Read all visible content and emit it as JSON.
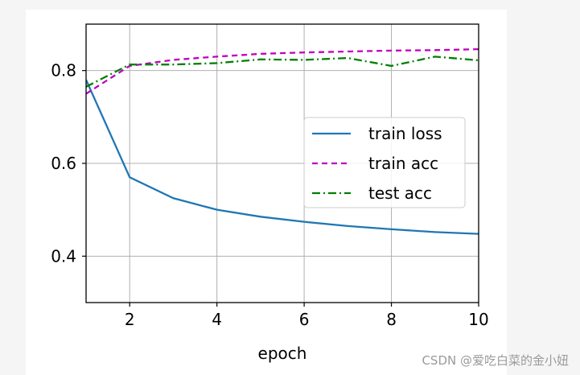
{
  "chart_data": {
    "type": "line",
    "xlabel": "epoch",
    "ylabel": "",
    "xlim": [
      1,
      10
    ],
    "ylim": [
      0.3,
      0.9
    ],
    "xticks": [
      2,
      4,
      6,
      8,
      10
    ],
    "yticks": [
      0.4,
      0.6,
      0.8
    ],
    "grid": true,
    "legend_position": "center-right",
    "series": [
      {
        "name": "train loss",
        "color": "#1f77b4",
        "dash": "solid",
        "x": [
          1,
          2,
          3,
          4,
          5,
          6,
          7,
          8,
          9,
          10
        ],
        "y": [
          0.78,
          0.57,
          0.525,
          0.5,
          0.485,
          0.474,
          0.465,
          0.458,
          0.452,
          0.448
        ]
      },
      {
        "name": "train acc",
        "color": "#bf00bf",
        "dash": "dashed",
        "x": [
          1,
          2,
          3,
          4,
          5,
          6,
          7,
          8,
          9,
          10
        ],
        "y": [
          0.75,
          0.81,
          0.823,
          0.83,
          0.836,
          0.839,
          0.841,
          0.843,
          0.844,
          0.846
        ]
      },
      {
        "name": "test acc",
        "color": "#008000",
        "dash": "dashdot",
        "x": [
          1,
          2,
          3,
          4,
          5,
          6,
          7,
          8,
          9,
          10
        ],
        "y": [
          0.765,
          0.813,
          0.813,
          0.816,
          0.824,
          0.823,
          0.827,
          0.81,
          0.83,
          0.822
        ]
      }
    ]
  },
  "watermark": "CSDN @爱吃白菜的金小妞"
}
